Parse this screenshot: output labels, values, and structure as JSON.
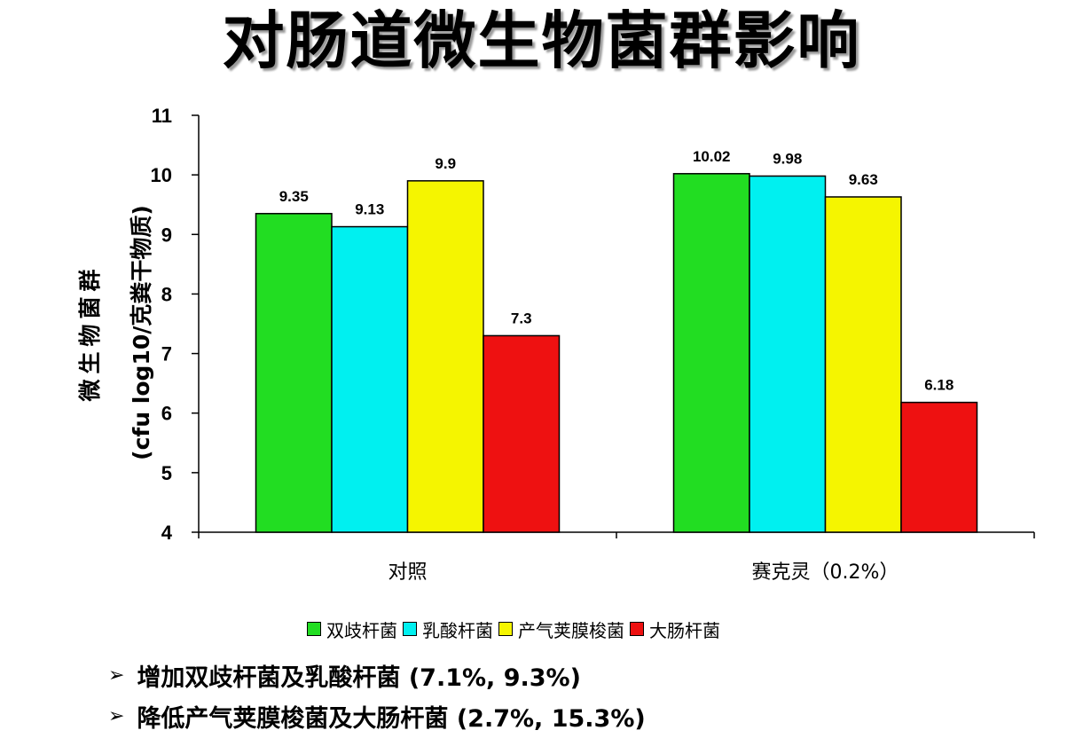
{
  "title": "对肠道微生物菌群影响",
  "chart_data": {
    "type": "bar",
    "ylabel_line1": "微生物菌群",
    "ylabel_line2": "(cfu log10/克粪干物质)",
    "ylim": [
      4,
      11
    ],
    "yticks": [
      4,
      5,
      6,
      7,
      8,
      9,
      10,
      11
    ],
    "categories": [
      "对照",
      "赛克灵（0.2%）"
    ],
    "series": [
      {
        "name": "双歧杆菌",
        "color": "#22dd22",
        "values": [
          9.35,
          10.02
        ],
        "labels": [
          "9.35",
          "10.02"
        ]
      },
      {
        "name": "乳酸杆菌",
        "color": "#00f0f0",
        "values": [
          9.13,
          9.98
        ],
        "labels": [
          "9.13",
          "9.98"
        ]
      },
      {
        "name": "产气荚膜梭菌",
        "color": "#f5f500",
        "values": [
          9.9,
          9.63
        ],
        "labels": [
          "9.9",
          "9.63"
        ]
      },
      {
        "name": "大肠杆菌",
        "color": "#ee1111",
        "values": [
          7.3,
          6.18
        ],
        "labels": [
          "7.3",
          "6.18"
        ]
      }
    ],
    "legend_position": "bottom",
    "grid": false
  },
  "notes": [
    "增加双歧杆菌及乳酸杆菌 (7.1%, 9.3%)",
    "降低产气荚膜梭菌及大肠杆菌 (2.7%, 15.3%)"
  ],
  "bullet_symbol": "➢"
}
